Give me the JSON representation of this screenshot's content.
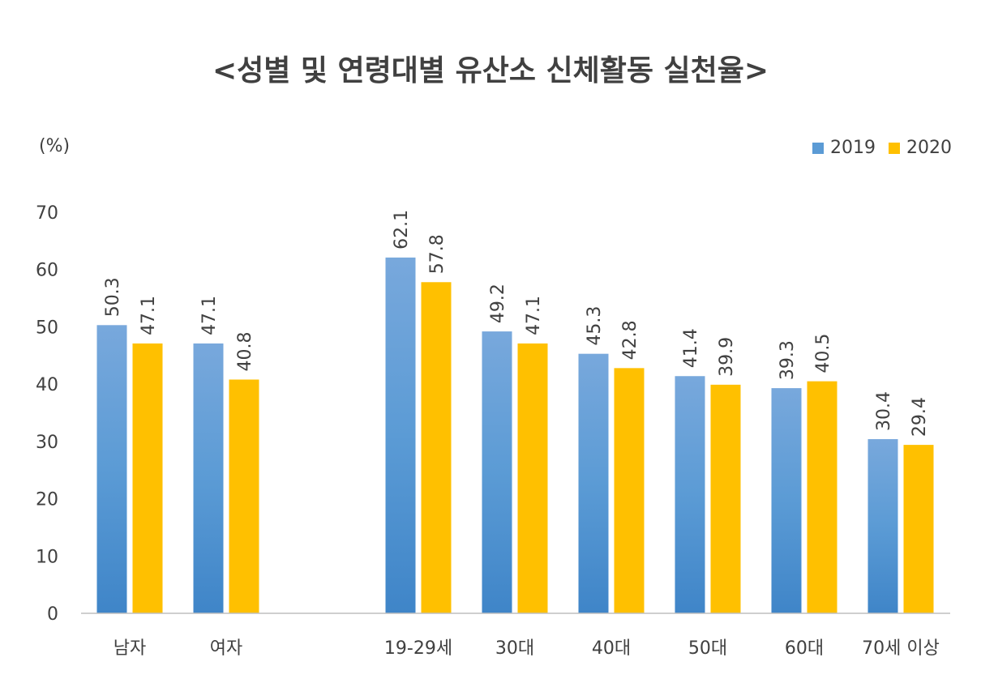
{
  "colors": {
    "series_2019": "#5b9bd5",
    "series_2020": "#ffc000",
    "text": "#404040",
    "axis": "#bfbfbf"
  },
  "chart_data": {
    "type": "bar",
    "title": "<성별 및 연령대별 유산소 신체활동 실천율>",
    "ylabel": "(%)",
    "xlabel": "",
    "ylim": [
      0,
      70
    ],
    "yticks": [
      0,
      10,
      20,
      30,
      40,
      50,
      60,
      70
    ],
    "grid": false,
    "legend_position": "top-right",
    "categories": [
      "남자",
      "여자",
      "19-29세",
      "30대",
      "40대",
      "50대",
      "60대",
      "70세 이상"
    ],
    "series": [
      {
        "name": "2019",
        "values": [
          50.3,
          47.1,
          62.1,
          49.2,
          45.3,
          41.4,
          39.3,
          30.4
        ]
      },
      {
        "name": "2020",
        "values": [
          47.1,
          40.8,
          57.8,
          47.1,
          42.8,
          39.9,
          40.5,
          29.4
        ]
      }
    ]
  }
}
